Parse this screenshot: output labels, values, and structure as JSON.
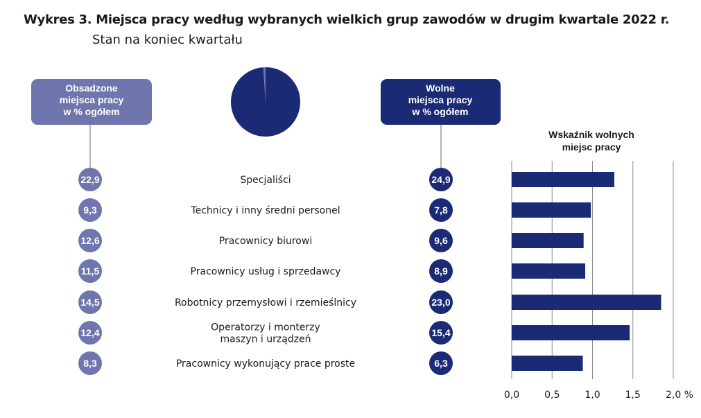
{
  "title": "Wykres 3. Miejsca pracy według wybranych wielkich grup zawodów w drugim kwartale 2022 r.",
  "subtitle": "Stan na koniec kwartału",
  "colors": {
    "occupied": "#6f76ad",
    "vacant": "#1b2a74",
    "bar": "#1b2a74",
    "connector": "#9a9a9a",
    "grid": "#8c8c8c"
  },
  "chart_data": {
    "type": "bar",
    "title": "Wykres 3. Miejsca pracy według wybranych wielkich grup zawodów w drugim kwartale 2022 r.",
    "subtitle": "Stan na koniec kwartału",
    "categories": [
      [
        "Specjaliści"
      ],
      [
        "Technicy i inny średni personel"
      ],
      [
        "Pracownicy biurowi"
      ],
      [
        "Pracownicy usług i sprzedawcy"
      ],
      [
        "Robotnicy przemysłowi i rzemieślnicy"
      ],
      [
        "Operatorzy i monterzy",
        "maszyn i urządzeń"
      ],
      [
        "Pracownicy wykonujący prace proste"
      ]
    ],
    "occupied_header": [
      "Obsadzone",
      "miejsca pracy",
      "w % ogółem"
    ],
    "vacant_header": [
      "Wolne",
      "miejsca pracy",
      "w % ogółem"
    ],
    "occupied_share_labels": [
      "22,9",
      "9,3",
      "12,6",
      "11,5",
      "14,5",
      "12,4",
      "8,3"
    ],
    "vacant_share_labels": [
      "24,9",
      "7,8",
      "9,6",
      "8,9",
      "23,0",
      "15,4",
      "6,3"
    ],
    "pie": {
      "series": [
        {
          "name": "Obsadzone miejsca pracy",
          "share": 0.99
        },
        {
          "name": "Wolne miejsca pracy",
          "share": 0.01
        }
      ]
    },
    "vacancy_rate": {
      "title": [
        "Wskaźnik wolnych",
        "miejsc pracy"
      ],
      "values": [
        1.27,
        0.98,
        0.89,
        0.91,
        1.85,
        1.46,
        0.88
      ],
      "xlim": [
        0,
        2.0
      ],
      "ticks": [
        0,
        0.5,
        1.0,
        1.5,
        2.0
      ],
      "tick_labels": [
        "0,0",
        "0,5",
        "1,0",
        "1,5",
        "2,0 %"
      ],
      "grid": true
    }
  }
}
